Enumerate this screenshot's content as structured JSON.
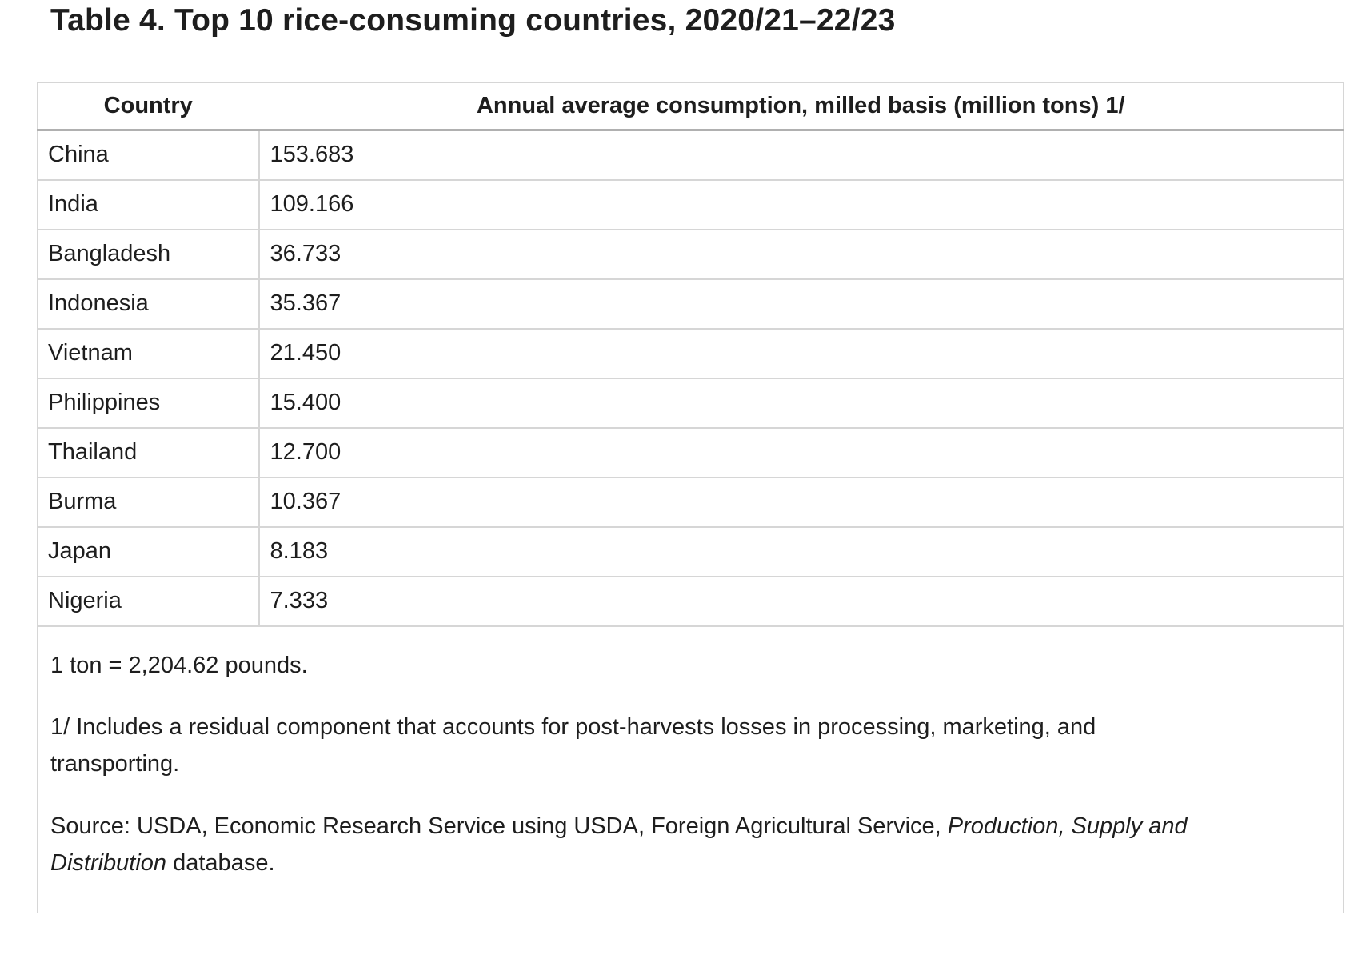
{
  "title": "Table 4. Top 10 rice-consuming countries, 2020/21–22/23",
  "table": {
    "headers": {
      "country": "Country",
      "consumption": "Annual average consumption, milled basis (million tons) 1/"
    },
    "rows": [
      {
        "country": "China",
        "value": "153.683"
      },
      {
        "country": "India",
        "value": "109.166"
      },
      {
        "country": "Bangladesh",
        "value": "36.733"
      },
      {
        "country": "Indonesia",
        "value": "35.367"
      },
      {
        "country": "Vietnam",
        "value": "21.450"
      },
      {
        "country": "Philippines",
        "value": "15.400"
      },
      {
        "country": "Thailand",
        "value": "12.700"
      },
      {
        "country": "Burma",
        "value": "10.367"
      },
      {
        "country": "Japan",
        "value": "8.183"
      },
      {
        "country": "Nigeria",
        "value": "7.333"
      }
    ],
    "footnotes": {
      "ton_note": "1 ton = 2,204.62 pounds.",
      "residual_note": "1/ Includes a residual component that accounts for post-harvests losses in processing, marketing, and transporting.",
      "source_prefix": "Source: USDA, Economic Research Service using USDA, Foreign Agricultural Service, ",
      "source_italic": "Production, Supply and Distribution",
      "source_suffix": " database."
    }
  },
  "colors": {
    "text": "#1e1e1e",
    "border_light": "#d6d6d6",
    "border_dark": "#b0b0b0",
    "background": "#ffffff"
  }
}
